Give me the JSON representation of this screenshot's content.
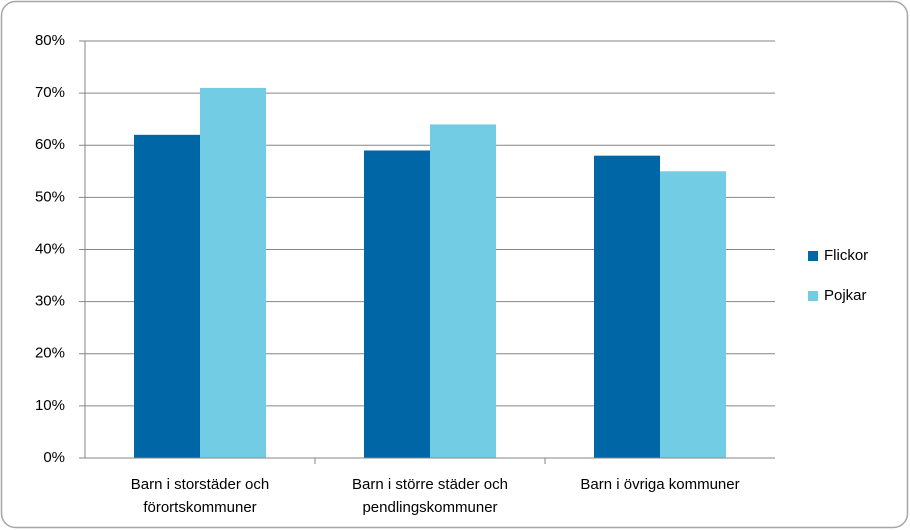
{
  "chart_data": {
    "type": "bar",
    "categories": [
      "Barn i storstäder och\nförortskommuner",
      "Barn i större städer och\npendlingskommuner",
      "Barn i övriga kommuner"
    ],
    "series": [
      {
        "name": "Flickor",
        "color": "#0066a6",
        "values": [
          62,
          59,
          58
        ]
      },
      {
        "name": "Pojkar",
        "color": "#72cde4",
        "values": [
          71,
          64,
          55
        ]
      }
    ],
    "ylim": [
      0,
      80
    ],
    "yticks": [
      {
        "value": 0,
        "label": "0%"
      },
      {
        "value": 10,
        "label": "10%"
      },
      {
        "value": 20,
        "label": "20%"
      },
      {
        "value": 30,
        "label": "30%"
      },
      {
        "value": 40,
        "label": "40%"
      },
      {
        "value": 50,
        "label": "50%"
      },
      {
        "value": 60,
        "label": "60%"
      },
      {
        "value": 70,
        "label": "70%"
      },
      {
        "value": 80,
        "label": "80%"
      }
    ],
    "grid": true,
    "legend": "right"
  }
}
